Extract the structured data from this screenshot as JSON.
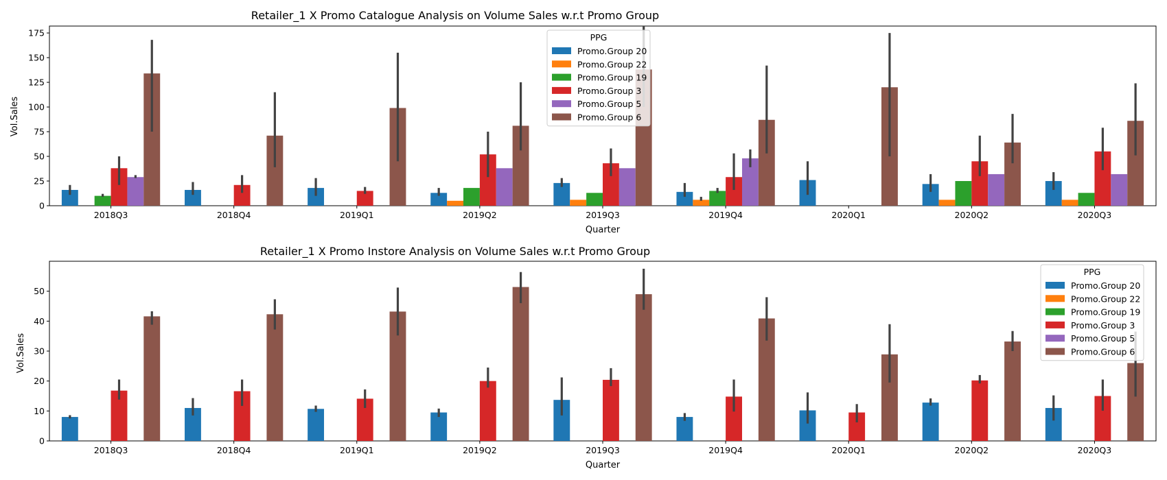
{
  "chart_data": [
    {
      "type": "bar",
      "title": "Retailer_1 X Promo Catalogue Analysis on Volume Sales w.r.t Promo Group",
      "xlabel": "Quarter",
      "ylabel": "Vol.Sales",
      "ylim": [
        0,
        182
      ],
      "yticks": [
        0,
        25,
        50,
        75,
        100,
        125,
        150,
        175
      ],
      "categories": [
        "2018Q3",
        "2018Q4",
        "2019Q1",
        "2019Q2",
        "2019Q3",
        "2019Q4",
        "2020Q1",
        "2020Q2",
        "2020Q3"
      ],
      "legend": {
        "title": "PPG",
        "placement": "upper-center"
      },
      "error_bars": true,
      "series": [
        {
          "name": "Promo.Group 20",
          "color": "#1f77b4",
          "values": [
            16,
            16,
            18,
            13,
            23,
            14,
            26,
            22,
            25
          ],
          "err_low": [
            11,
            11,
            10,
            10,
            19,
            9,
            11,
            14,
            16
          ],
          "err_high": [
            21,
            24,
            28,
            18,
            28,
            23,
            45,
            32,
            34
          ]
        },
        {
          "name": "Promo.Group 22",
          "color": "#ff7f0e",
          "values": [
            null,
            null,
            null,
            5,
            6,
            6,
            null,
            6,
            6
          ],
          "err_low": [
            null,
            null,
            null,
            null,
            null,
            5,
            null,
            null,
            null
          ],
          "err_high": [
            null,
            null,
            null,
            null,
            null,
            9,
            null,
            null,
            null
          ]
        },
        {
          "name": "Promo.Group 19",
          "color": "#2ca02c",
          "values": [
            10,
            null,
            null,
            18,
            13,
            15,
            null,
            25,
            13
          ],
          "err_low": [
            9,
            null,
            null,
            null,
            null,
            13,
            null,
            null,
            null
          ],
          "err_high": [
            12,
            null,
            null,
            null,
            null,
            18,
            null,
            null,
            null
          ]
        },
        {
          "name": "Promo.Group 3",
          "color": "#d62728",
          "values": [
            38,
            21,
            15,
            52,
            43,
            29,
            null,
            45,
            55
          ],
          "err_low": [
            21,
            13,
            12,
            29,
            30,
            16,
            null,
            30,
            36
          ],
          "err_high": [
            50,
            31,
            19,
            75,
            58,
            53,
            null,
            71,
            79
          ]
        },
        {
          "name": "Promo.Group 5",
          "color": "#9467bd",
          "values": [
            29,
            null,
            null,
            38,
            38,
            48,
            null,
            32,
            32
          ],
          "err_low": [
            28,
            null,
            null,
            null,
            null,
            39,
            null,
            null,
            null
          ],
          "err_high": [
            31,
            null,
            null,
            null,
            null,
            57,
            null,
            null,
            null
          ]
        },
        {
          "name": "Promo.Group 6",
          "color": "#8c564b",
          "values": [
            134,
            71,
            99,
            81,
            138,
            87,
            120,
            64,
            86
          ],
          "err_low": [
            75,
            39,
            45,
            56,
            100,
            53,
            50,
            43,
            51
          ],
          "err_high": [
            168,
            115,
            155,
            125,
            182,
            142,
            175,
            93,
            124
          ]
        }
      ]
    },
    {
      "type": "bar",
      "title": "Retailer_1 X Promo Instore Analysis on Volume Sales w.r.t Promo Group",
      "xlabel": "Quarter",
      "ylabel": "Vol.Sales",
      "ylim": [
        0,
        60
      ],
      "yticks": [
        0,
        10,
        20,
        30,
        40,
        50
      ],
      "categories": [
        "2018Q3",
        "2018Q4",
        "2019Q1",
        "2019Q2",
        "2019Q3",
        "2019Q4",
        "2020Q1",
        "2020Q2",
        "2020Q3"
      ],
      "legend": {
        "title": "PPG",
        "placement": "upper-right"
      },
      "error_bars": true,
      "series": [
        {
          "name": "Promo.Group 20",
          "color": "#1f77b4",
          "values": [
            8,
            11,
            10.7,
            9.5,
            13.7,
            8,
            10.2,
            12.8,
            11
          ],
          "err_low": [
            7.5,
            8.5,
            9.7,
            8,
            8.5,
            6.7,
            5.8,
            11.8,
            6.8
          ],
          "err_high": [
            8.6,
            14.3,
            11.8,
            10.8,
            21.2,
            9.3,
            16.2,
            14.2,
            15.2
          ]
        },
        {
          "name": "Promo.Group 22",
          "color": "#ff7f0e",
          "values": [
            null,
            null,
            null,
            null,
            null,
            null,
            null,
            null,
            null
          ],
          "err_low": [
            null,
            null,
            null,
            null,
            null,
            null,
            null,
            null,
            null
          ],
          "err_high": [
            null,
            null,
            null,
            null,
            null,
            null,
            null,
            null,
            null
          ]
        },
        {
          "name": "Promo.Group 19",
          "color": "#2ca02c",
          "values": [
            null,
            null,
            null,
            null,
            null,
            null,
            null,
            null,
            null
          ],
          "err_low": [
            null,
            null,
            null,
            null,
            null,
            null,
            null,
            null,
            null
          ],
          "err_high": [
            null,
            null,
            null,
            null,
            null,
            null,
            null,
            null,
            null
          ]
        },
        {
          "name": "Promo.Group 3",
          "color": "#d62728",
          "values": [
            16.8,
            16.6,
            14.1,
            20,
            20.4,
            14.8,
            9.5,
            20.2,
            15
          ],
          "err_low": [
            13.8,
            11.7,
            11,
            17.8,
            18.3,
            9.8,
            6.2,
            19.2,
            10.1
          ],
          "err_high": [
            20.5,
            20.5,
            17.2,
            24.5,
            24.3,
            20.5,
            12.3,
            22,
            20.5
          ]
        },
        {
          "name": "Promo.Group 5",
          "color": "#9467bd",
          "values": [
            null,
            null,
            null,
            null,
            null,
            null,
            null,
            null,
            null
          ],
          "err_low": [
            null,
            null,
            null,
            null,
            null,
            null,
            null,
            null,
            null
          ],
          "err_high": [
            null,
            null,
            null,
            null,
            null,
            null,
            null,
            null,
            null
          ]
        },
        {
          "name": "Promo.Group 6",
          "color": "#8c564b",
          "values": [
            41.6,
            42.3,
            43.2,
            51.4,
            49,
            40.9,
            28.9,
            33.2,
            26
          ],
          "err_low": [
            38.8,
            37.2,
            35.2,
            46,
            43.8,
            33.5,
            19.5,
            30,
            14.8
          ],
          "err_high": [
            43.3,
            47.3,
            51.2,
            56.4,
            57.5,
            48,
            39,
            36.7,
            36.5
          ]
        }
      ]
    }
  ]
}
